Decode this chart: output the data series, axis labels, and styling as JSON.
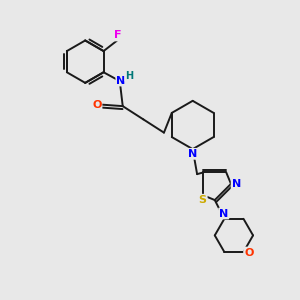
{
  "bg_color": "#e8e8e8",
  "bond_color": "#1a1a1a",
  "atom_colors": {
    "F": "#ee00ee",
    "N": "#0000ff",
    "O": "#ff3300",
    "S": "#ccaa00",
    "H": "#007777",
    "C": "#1a1a1a"
  },
  "figsize": [
    3.0,
    3.0
  ],
  "dpi": 100
}
